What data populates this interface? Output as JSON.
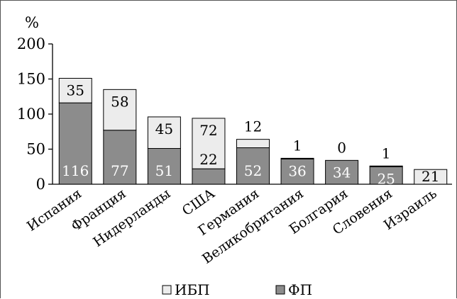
{
  "chart_data": {
    "type": "bar",
    "stacked": true,
    "ylabel": "%",
    "ylim": [
      0,
      200
    ],
    "yticks": [
      "0",
      "50",
      "100",
      "150",
      "200"
    ],
    "categories": [
      "Испания",
      "Франция",
      "Нидерланды",
      "США",
      "Германия",
      "Великобритания",
      "Болгария",
      "Словения",
      "Израиль"
    ],
    "series": [
      {
        "name": "ФП",
        "color": "#8c8c8c",
        "values": [
          116,
          77,
          51,
          22,
          52,
          36,
          34,
          25,
          0
        ]
      },
      {
        "name": "ИБП",
        "color": "#ececec",
        "values": [
          35,
          58,
          45,
          72,
          12,
          1,
          0,
          1,
          21
        ]
      }
    ],
    "grid": false,
    "legend_position": "bottom"
  }
}
